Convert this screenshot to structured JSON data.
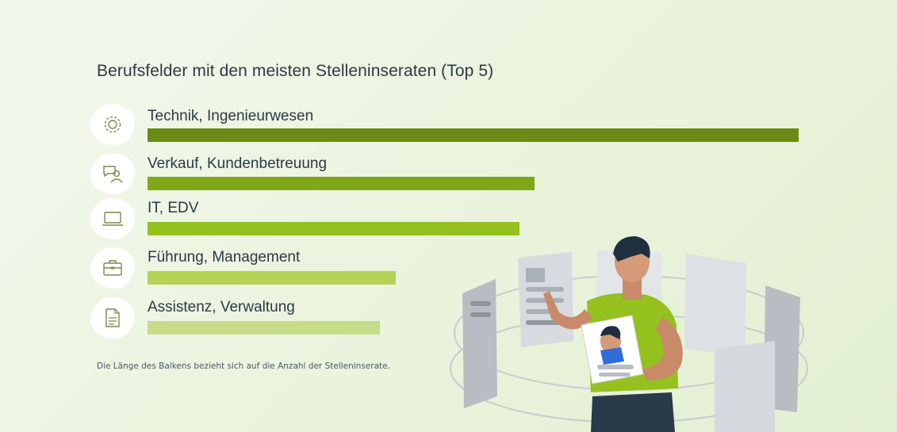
{
  "chart_data": {
    "type": "bar",
    "orientation": "horizontal",
    "title": "Berufsfelder mit den meisten Stelleninseraten (Top 5)",
    "categories": [
      "Technik, Ingenieurwesen",
      "Verkauf, Kundenbetreuung",
      "IT, EDV",
      "Führung, Management",
      "Assistenz, Verwaltung"
    ],
    "values": [
      100,
      59.5,
      57.1,
      38.1,
      35.7
    ],
    "xlim": [
      0,
      100
    ],
    "axes_visible": false,
    "grid": false,
    "icons": [
      "gear-icon",
      "chat-person-icon",
      "laptop-icon",
      "briefcase-icon",
      "document-icon"
    ],
    "bar_colors": [
      "#6b8a16",
      "#7fa819",
      "#94c11e",
      "#b3d256",
      "#c6dc89"
    ],
    "footnote": "Die Länge des Balkens bezieht sich auf die Anzahl der Stelleninserate."
  }
}
